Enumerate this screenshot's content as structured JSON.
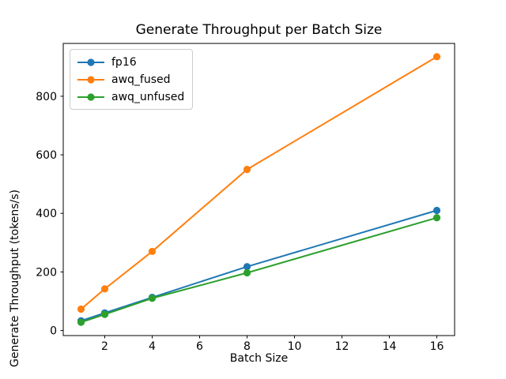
{
  "chart_data": {
    "type": "line",
    "title": "Generate Throughput per Batch Size",
    "xlabel": "Batch Size",
    "ylabel": "Generate Throughput (tokens/s)",
    "x": [
      1,
      2,
      4,
      8,
      16
    ],
    "series": [
      {
        "name": "fp16",
        "color": "#1f77b4",
        "values": [
          33,
          60,
          113,
          218,
          410
        ]
      },
      {
        "name": "awq_fused",
        "color": "#ff7f0e",
        "values": [
          73,
          142,
          270,
          550,
          935
        ]
      },
      {
        "name": "awq_unfused",
        "color": "#2ca02c",
        "values": [
          28,
          55,
          110,
          197,
          385
        ]
      }
    ],
    "xlim": [
      0.25,
      16.75
    ],
    "ylim": [
      -17.4,
      980.4
    ],
    "x_ticks": [
      2,
      4,
      6,
      8,
      10,
      12,
      14,
      16
    ],
    "y_ticks": [
      0,
      200,
      400,
      600,
      800
    ],
    "grid": false,
    "marker": "o",
    "legend_position": "upper-left",
    "background_color": "#ffffff",
    "spine_color": "#000000",
    "legend_border_color": "#cccccc"
  }
}
